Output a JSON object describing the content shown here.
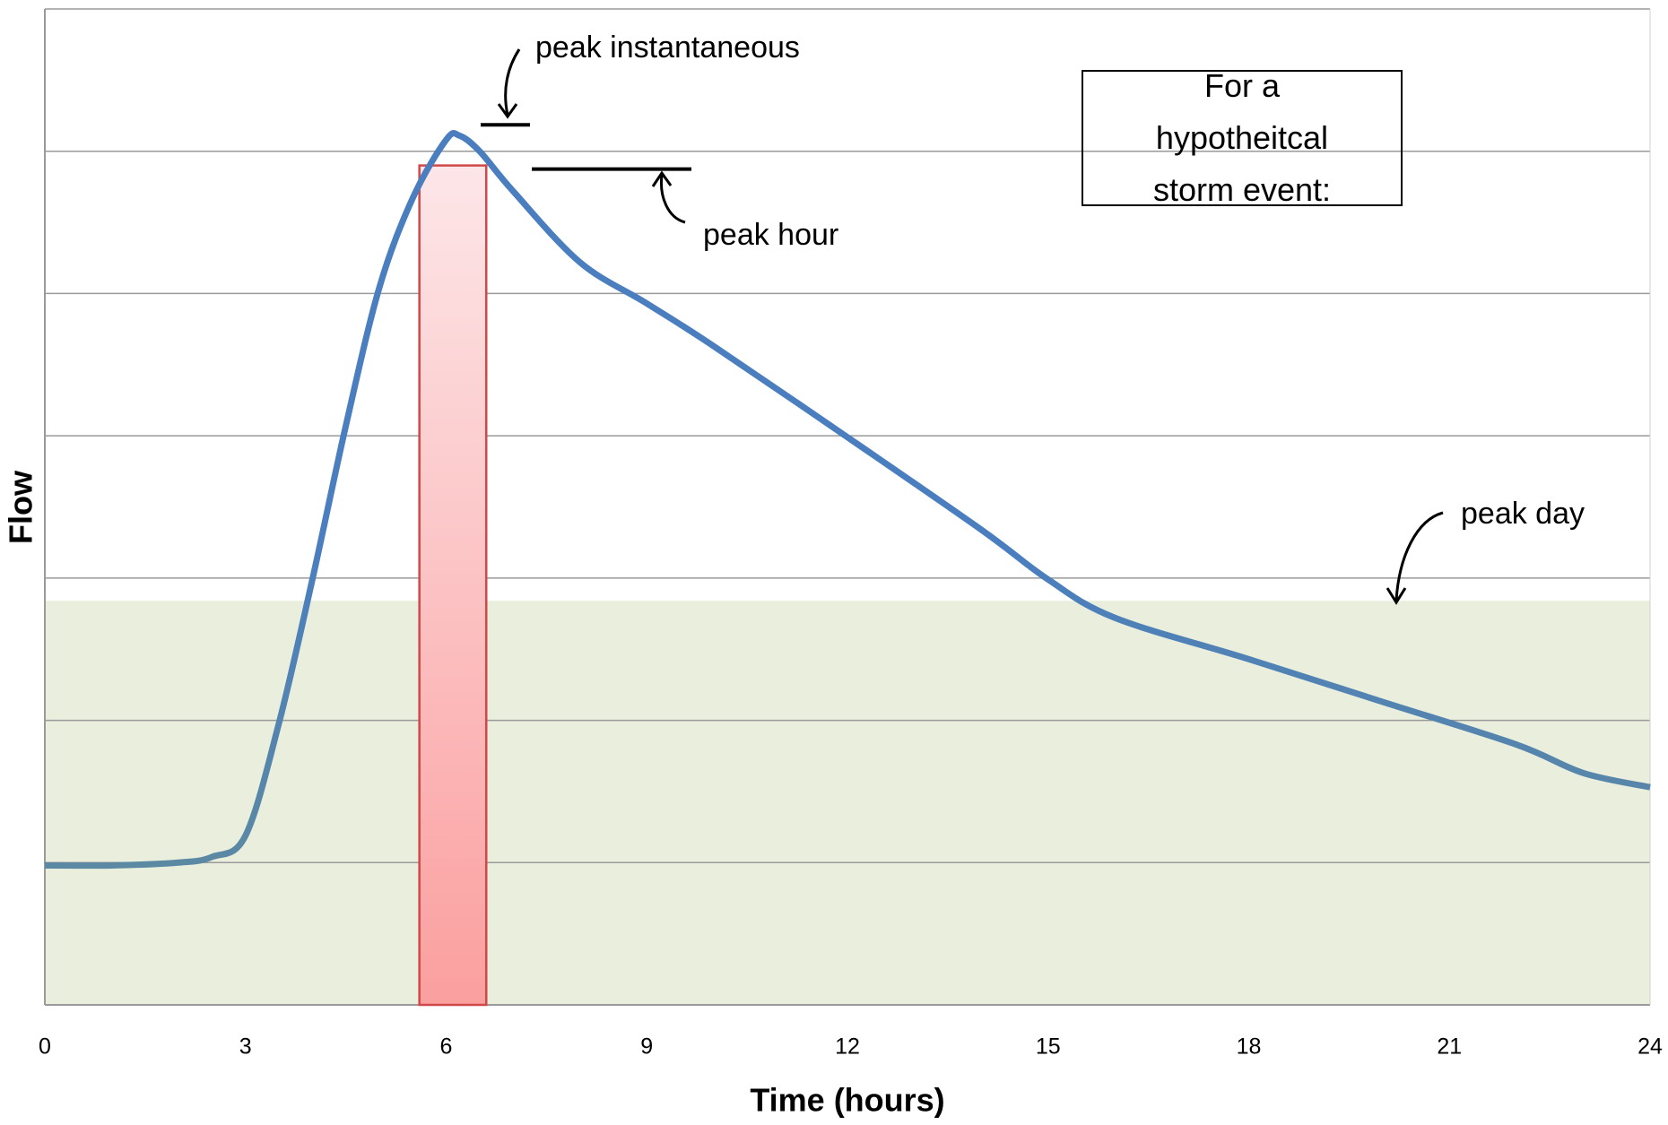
{
  "chart_data": {
    "type": "line",
    "x_label": "Time (hours)",
    "y_label": "Flow",
    "x": [
      0,
      1,
      2,
      2.5,
      3,
      3.5,
      4,
      4.5,
      5,
      5.5,
      6,
      6.2,
      6.5,
      7,
      8,
      9,
      10,
      12,
      14,
      15,
      16,
      18,
      20,
      22,
      23,
      24
    ],
    "series": [
      {
        "color": "#4a7ebf",
        "values": [
          0.98,
          0.98,
          1.0,
          1.04,
          1.19,
          1.98,
          2.99,
          4.07,
          5.04,
          5.67,
          6.08,
          6.11,
          6.0,
          5.72,
          5.22,
          4.93,
          4.63,
          3.99,
          3.34,
          2.99,
          2.72,
          2.43,
          2.13,
          1.83,
          1.63,
          1.53
        ]
      }
    ],
    "xlim": [
      0,
      24
    ],
    "xticks": [
      0,
      3,
      6,
      9,
      12,
      15,
      18,
      21,
      24
    ],
    "ylim": [
      0,
      7
    ],
    "ygrid": [
      1,
      2,
      3,
      4,
      5,
      6
    ],
    "grid": true,
    "peak_instantaneous": {
      "label": "peak instantaneous",
      "value": 6.11
    },
    "peak_hour": {
      "label": "peak hour",
      "value": 5.9,
      "start": 5.6,
      "end": 6.6,
      "color": "#fb9f9f"
    },
    "peak_day": {
      "label": "peak day",
      "value": 2.84,
      "color": "#e9eedd"
    },
    "note": "For a hypotheitcal storm event:"
  }
}
